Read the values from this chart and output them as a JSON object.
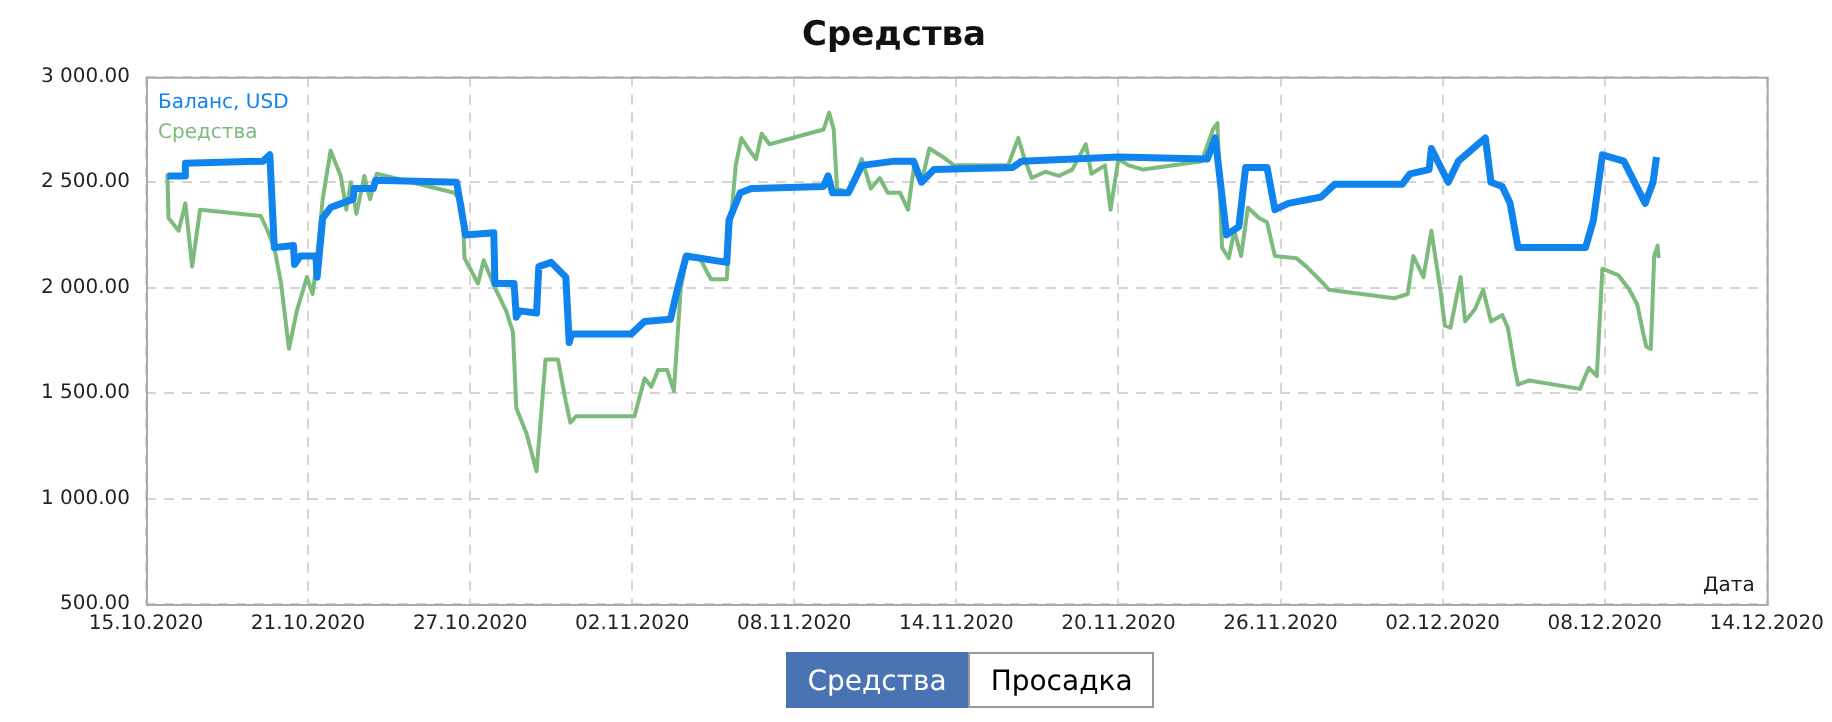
{
  "chart_data": {
    "type": "line",
    "title": "Средства",
    "xlabel": "Дата",
    "xlim": [
      "2020-10-15",
      "2020-12-14"
    ],
    "xticks": [
      {
        "value": "2020-10-15",
        "label": "15.10.2020"
      },
      {
        "value": "2020-10-21",
        "label": "21.10.2020"
      },
      {
        "value": "2020-10-27",
        "label": "27.10.2020"
      },
      {
        "value": "2020-11-02",
        "label": "02.11.2020"
      },
      {
        "value": "2020-11-08",
        "label": "08.11.2020"
      },
      {
        "value": "2020-11-14",
        "label": "14.11.2020"
      },
      {
        "value": "2020-11-20",
        "label": "20.11.2020"
      },
      {
        "value": "2020-11-26",
        "label": "26.11.2020"
      },
      {
        "value": "2020-12-02",
        "label": "02.12.2020"
      },
      {
        "value": "2020-12-08",
        "label": "08.12.2020"
      },
      {
        "value": "2020-12-14",
        "label": "14.12.2020"
      }
    ],
    "ylim": [
      500,
      3000
    ],
    "yticks": [
      {
        "value": 500,
        "label": "500.00"
      },
      {
        "value": 1000,
        "label": "1 000.00"
      },
      {
        "value": 1500,
        "label": "1 500.00"
      },
      {
        "value": 2000,
        "label": "2 000.00"
      },
      {
        "value": 2500,
        "label": "2 500.00"
      },
      {
        "value": 3000,
        "label": "3 000.00"
      }
    ],
    "grid": true,
    "legend": "top left",
    "marker": "none",
    "line_style": "solid",
    "annotations": [
      "Средства",
      "Просадка"
    ],
    "series": [
      {
        "name": "Баланс, USD",
        "color": "#0f84ee",
        "x": [
          "2020-10-15T19:00",
          "2020-10-16T10:00",
          "2020-10-16T11:00",
          "2020-10-19T08:00",
          "2020-10-19T14:00",
          "2020-10-19T18:00",
          "2020-10-20T11:00",
          "2020-10-20T12:00",
          "2020-10-20T17:00",
          "2020-10-21T07:00",
          "2020-10-21T08:00",
          "2020-10-21T13:00",
          "2020-10-21T20:00",
          "2020-10-22T16:00",
          "2020-10-22T17:00",
          "2020-10-23T10:00",
          "2020-10-23T12:00",
          "2020-10-26T12:00",
          "2020-10-26T20:00",
          "2020-10-27T21:00",
          "2020-10-27T22:00",
          "2020-10-28T15:00",
          "2020-10-28T17:00",
          "2020-10-28T20:00",
          "2020-10-29T11:00",
          "2020-10-29T13:00",
          "2020-10-30T00:00",
          "2020-10-30T13:00",
          "2020-10-30T16:00",
          "2020-10-30T18:00",
          "2020-11-01T23:00",
          "2020-11-02T11:00",
          "2020-11-03T10:00",
          "2020-11-03T16:00",
          "2020-11-04T00:00",
          "2020-11-05T12:00",
          "2020-11-05T14:00",
          "2020-11-06T00:00",
          "2020-11-06T10:00",
          "2020-11-09T02:00",
          "2020-11-09T06:00",
          "2020-11-09T10:00",
          "2020-11-10T00:00",
          "2020-11-10T12:00",
          "2020-11-11T17:00",
          "2020-11-12T10:00",
          "2020-11-12T17:00",
          "2020-11-13T04:00",
          "2020-11-16T02:00",
          "2020-11-16T10:00",
          "2020-11-20T00:00",
          "2020-11-23T07:00",
          "2020-11-23T14:00",
          "2020-11-24T00:00",
          "2020-11-24T11:00",
          "2020-11-24T17:00",
          "2020-11-25T12:00",
          "2020-11-25T19:00",
          "2020-11-26T07:00",
          "2020-11-27T12:00",
          "2020-11-28T00:00",
          "2020-11-30T12:00",
          "2020-11-30T19:00",
          "2020-12-01T12:00",
          "2020-12-01T14:00",
          "2020-12-02T05:00",
          "2020-12-02T14:00",
          "2020-12-03T14:00",
          "2020-12-03T19:00",
          "2020-12-04T05:00",
          "2020-12-04T12:00",
          "2020-12-04T19:00",
          "2020-12-07T07:00",
          "2020-12-07T14:00",
          "2020-12-07T22:00",
          "2020-12-08T17:00",
          "2020-12-09T12:00",
          "2020-12-09T19:00",
          "2020-12-09T22:00"
        ],
        "values": [
          2530,
          2530,
          2590,
          2600,
          2630,
          2190,
          2200,
          2110,
          2150,
          2150,
          2050,
          2330,
          2380,
          2420,
          2470,
          2470,
          2510,
          2500,
          2250,
          2260,
          2020,
          2020,
          1860,
          1890,
          1880,
          2100,
          2120,
          2050,
          1740,
          1780,
          1780,
          1840,
          1850,
          1990,
          2150,
          2120,
          2320,
          2450,
          2470,
          2480,
          2530,
          2450,
          2450,
          2580,
          2600,
          2600,
          2500,
          2560,
          2570,
          2600,
          2620,
          2610,
          2710,
          2250,
          2290,
          2570,
          2570,
          2370,
          2400,
          2430,
          2490,
          2490,
          2540,
          2560,
          2660,
          2500,
          2600,
          2710,
          2500,
          2480,
          2400,
          2190,
          2190,
          2320,
          2630,
          2600,
          2400,
          2500,
          2620
        ]
      },
      {
        "name": "Средства",
        "color": "#7dbb7d",
        "x": [
          "2020-10-15T19:00",
          "2020-10-15T20:00",
          "2020-10-16T05:00",
          "2020-10-16T11:00",
          "2020-10-16T17:00",
          "2020-10-17T00:00",
          "2020-10-19T06:00",
          "2020-10-19T12:00",
          "2020-10-19T18:00",
          "2020-10-20T00:00",
          "2020-10-20T07:00",
          "2020-10-20T14:00",
          "2020-10-20T23:00",
          "2020-10-21T04:00",
          "2020-10-21T07:00",
          "2020-10-21T13:00",
          "2020-10-21T20:00",
          "2020-10-22T05:00",
          "2020-10-22T10:00",
          "2020-10-22T14:00",
          "2020-10-22T19:00",
          "2020-10-23T02:00",
          "2020-10-23T07:00",
          "2020-10-23T13:00",
          "2020-10-26T10:00",
          "2020-10-26T17:00",
          "2020-10-26T19:00",
          "2020-10-27T07:00",
          "2020-10-27T12:00",
          "2020-10-27T22:00",
          "2020-10-28T08:00",
          "2020-10-28T14:00",
          "2020-10-28T17:00",
          "2020-10-29T02:00",
          "2020-10-29T11:00",
          "2020-10-29T19:00",
          "2020-10-30T06:00",
          "2020-10-30T13:00",
          "2020-10-30T17:00",
          "2020-10-30T22:00",
          "2020-11-02T02:00",
          "2020-11-02T11:00",
          "2020-11-02T17:00",
          "2020-11-02T23:00",
          "2020-11-03T07:00",
          "2020-11-03T13:00",
          "2020-11-03T19:00",
          "2020-11-04T00:00",
          "2020-11-04T12:00",
          "2020-11-04T22:00",
          "2020-11-05T12:00",
          "2020-11-05T14:00",
          "2020-11-05T20:00",
          "2020-11-06T01:00",
          "2020-11-06T07:00",
          "2020-11-06T14:00",
          "2020-11-06T19:00",
          "2020-11-07T02:00",
          "2020-11-09T02:00",
          "2020-11-09T07:00",
          "2020-11-09T11:00",
          "2020-11-09T14:00",
          "2020-11-10T00:00",
          "2020-11-10T12:00",
          "2020-11-10T20:00",
          "2020-11-11T04:00",
          "2020-11-11T11:00",
          "2020-11-11T22:00",
          "2020-11-12T05:00",
          "2020-11-12T10:00",
          "2020-11-12T17:00",
          "2020-11-13T00:00",
          "2020-11-13T12:00",
          "2020-11-13T22:00",
          "2020-11-15T22:00",
          "2020-11-16T07:00",
          "2020-11-16T12:00",
          "2020-11-16T19:00",
          "2020-11-17T07:00",
          "2020-11-17T19:00",
          "2020-11-18T07:00",
          "2020-11-18T19:00",
          "2020-11-19T00:00",
          "2020-11-19T12:00",
          "2020-11-19T17:00",
          "2020-11-20T00:00",
          "2020-11-20T09:00",
          "2020-11-20T22:00",
          "2020-11-23T02:00",
          "2020-11-23T12:00",
          "2020-11-23T16:00",
          "2020-11-23T20:00",
          "2020-11-24T02:00",
          "2020-11-24T07:00",
          "2020-11-24T13:00",
          "2020-11-24T19:00",
          "2020-11-25T05:00",
          "2020-11-25T12:00",
          "2020-11-25T19:00",
          "2020-11-26T14:00",
          "2020-11-26T23:00",
          "2020-11-27T14:00",
          "2020-11-27T19:00",
          "2020-11-30T05:00",
          "2020-11-30T17:00",
          "2020-11-30T22:00",
          "2020-12-01T07:00",
          "2020-12-01T14:00",
          "2020-12-01T22:00",
          "2020-12-02T02:00",
          "2020-12-02T07:00",
          "2020-12-02T16:00",
          "2020-12-02T20:00",
          "2020-12-03T05:00",
          "2020-12-03T12:00",
          "2020-12-03T19:00",
          "2020-12-04T05:00",
          "2020-12-04T10:00",
          "2020-12-04T16:00",
          "2020-12-04T19:00",
          "2020-12-05T05:00",
          "2020-12-07T02:00",
          "2020-12-07T10:00",
          "2020-12-07T17:00",
          "2020-12-07T22:00",
          "2020-12-08T12:00",
          "2020-12-08T22:00",
          "2020-12-09T05:00",
          "2020-12-09T10:00",
          "2020-12-09T13:00",
          "2020-12-09T17:00",
          "2020-12-09T20:00",
          "2020-12-09T23:00",
          "2020-12-10T00:00"
        ],
        "values": [
          2540,
          2330,
          2270,
          2400,
          2100,
          2370,
          2340,
          2270,
          2190,
          2020,
          1710,
          1890,
          2050,
          1970,
          2090,
          2420,
          2650,
          2530,
          2370,
          2500,
          2350,
          2530,
          2420,
          2540,
          2450,
          2400,
          2140,
          2020,
          2130,
          2000,
          1890,
          1790,
          1430,
          1310,
          1130,
          1660,
          1660,
          1460,
          1360,
          1390,
          1390,
          1570,
          1530,
          1610,
          1610,
          1510,
          1990,
          2140,
          2140,
          2040,
          2040,
          2220,
          2580,
          2710,
          2660,
          2610,
          2730,
          2680,
          2750,
          2830,
          2750,
          2470,
          2450,
          2610,
          2470,
          2520,
          2450,
          2450,
          2370,
          2560,
          2500,
          2660,
          2620,
          2580,
          2580,
          2710,
          2620,
          2520,
          2550,
          2530,
          2560,
          2680,
          2540,
          2580,
          2370,
          2610,
          2580,
          2560,
          2600,
          2750,
          2780,
          2190,
          2140,
          2270,
          2150,
          2380,
          2330,
          2310,
          2150,
          2140,
          2100,
          2020,
          1990,
          1950,
          1970,
          2150,
          2050,
          2270,
          1990,
          1820,
          1810,
          2050,
          1840,
          1900,
          1990,
          1840,
          1870,
          1810,
          1620,
          1540,
          1560,
          1520,
          1620,
          1580,
          2090,
          2060,
          1990,
          1920,
          1790,
          1720,
          1710,
          2150,
          2200,
          2140
        ]
      }
    ]
  }
}
